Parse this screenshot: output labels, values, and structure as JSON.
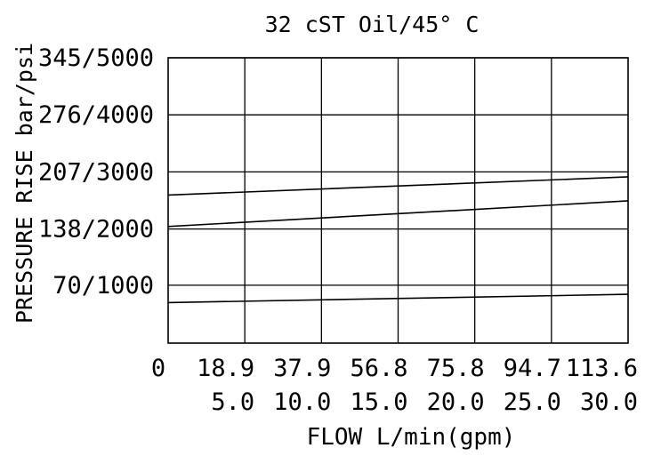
{
  "chart_data": {
    "type": "line",
    "title": "32 cST Oil/45° C",
    "xlabel": "FLOW L/min(gpm)",
    "ylabel": "PRESSURE RISE bar/psi",
    "x_ticks_lpm": [
      "0",
      "18.9",
      "37.9",
      "56.8",
      "75.8",
      "94.7",
      "113.6"
    ],
    "x_ticks_gpm": [
      "5.0",
      "10.0",
      "15.0",
      "20.0",
      "25.0",
      "30.0"
    ],
    "y_ticks": [
      "70/1000",
      "138/2000",
      "207/3000",
      "276/4000",
      "345/5000"
    ],
    "y_tick_values_bar": [
      70,
      138,
      207,
      276,
      345
    ],
    "xlim_gpm": [
      0,
      30
    ],
    "ylim_bar": [
      0,
      345
    ],
    "grid": true,
    "series": [
      {
        "x": [
          0,
          30
        ],
        "y": [
          179,
          201
        ]
      },
      {
        "x": [
          0,
          30
        ],
        "y": [
          141,
          172
        ]
      },
      {
        "x": [
          0,
          30
        ],
        "y": [
          49,
          59
        ]
      }
    ]
  }
}
